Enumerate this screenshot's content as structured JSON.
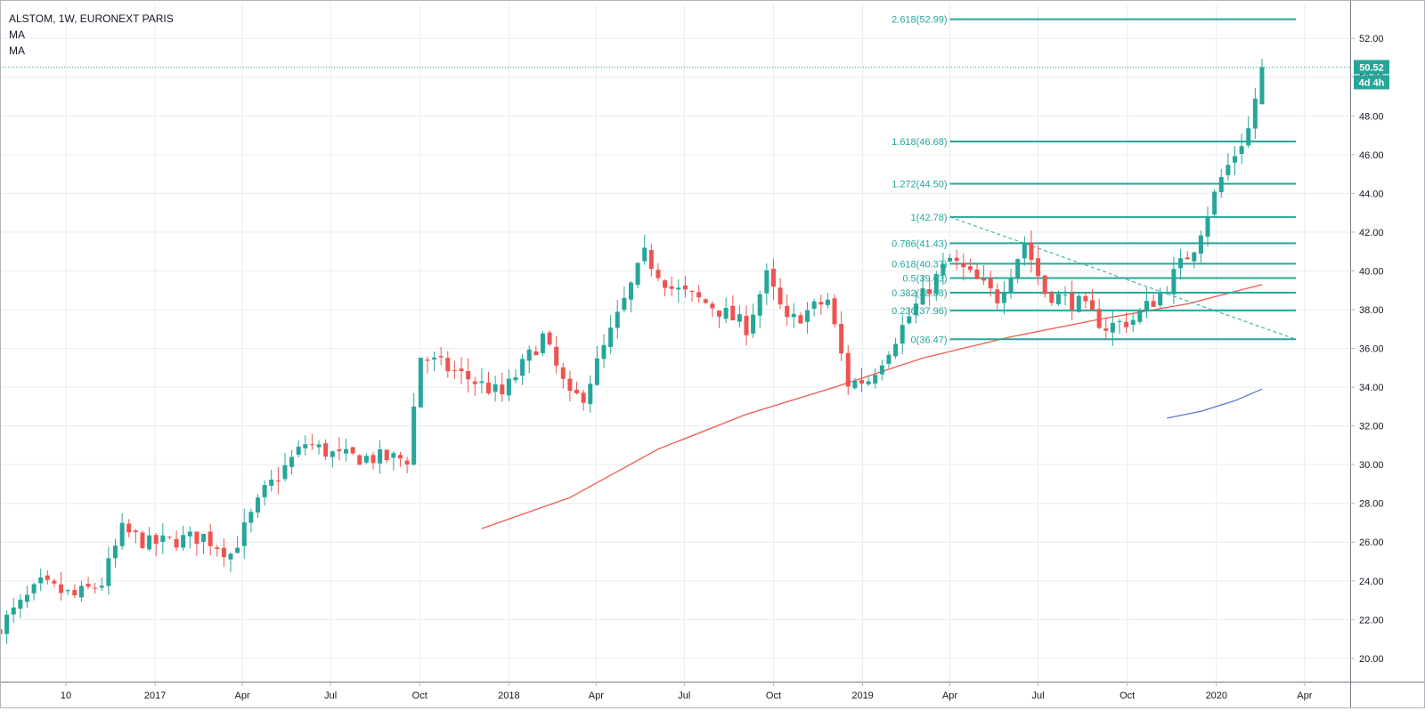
{
  "legend": {
    "symbol_line": "ALSTOM, 1W, EURONEXT PARIS",
    "ma1": "MA",
    "ma2": "MA"
  },
  "colors": {
    "up": "#26a69a",
    "down": "#ef5350",
    "grid": "#e9ecf2",
    "fib": "#26a69a",
    "ma_red": "#f05a50",
    "ma_blue": "#5b79c8",
    "price_badge": "#26a69a",
    "timer_badge": "#26a69a"
  },
  "price_badge": "50.52",
  "timer_badge": "4d 4h",
  "chart_data": {
    "type": "candlestick",
    "title": "ALSTOM, 1W, EURONEXT PARIS",
    "x_range": [
      "2016-07-25",
      "2020-05-18"
    ],
    "y_range": [
      18.8,
      53.8
    ],
    "y_ticks": [
      20,
      22,
      24,
      26,
      28,
      30,
      32,
      34,
      36,
      38,
      40,
      42,
      44,
      46,
      48,
      50,
      52
    ],
    "y_tick_labels": [
      "20.00",
      "22.00",
      "24.00",
      "26.00",
      "28.00",
      "30.00",
      "32.00",
      "34.00",
      "36.00",
      "38.00",
      "40.00",
      "42.00",
      "44.00",
      "46.00",
      "48.00",
      "50.00",
      "52.00"
    ],
    "x_ticks": [
      {
        "date": "2016-10-01",
        "label": "10"
      },
      {
        "date": "2017-01-01",
        "label": "2017"
      },
      {
        "date": "2017-04-01",
        "label": "Apr"
      },
      {
        "date": "2017-07-01",
        "label": "Jul"
      },
      {
        "date": "2017-10-01",
        "label": "Oct"
      },
      {
        "date": "2018-01-01",
        "label": "2018"
      },
      {
        "date": "2018-04-01",
        "label": "Apr"
      },
      {
        "date": "2018-07-01",
        "label": "Jul"
      },
      {
        "date": "2018-10-01",
        "label": "Oct"
      },
      {
        "date": "2019-01-01",
        "label": "2019"
      },
      {
        "date": "2019-04-01",
        "label": "Apr"
      },
      {
        "date": "2019-07-01",
        "label": "Jul"
      },
      {
        "date": "2019-10-01",
        "label": "Oct"
      },
      {
        "date": "2020-01-01",
        "label": "2020"
      },
      {
        "date": "2020-04-01",
        "label": "Apr"
      }
    ],
    "last_price": 50.52,
    "candle_path": [
      [
        "2016-07-25",
        21.7
      ],
      [
        "2016-09-05",
        23.8
      ],
      [
        "2016-10-10",
        23.2
      ],
      [
        "2016-11-07",
        23.9
      ],
      [
        "2016-11-28",
        26.6
      ],
      [
        "2016-12-26",
        25.9
      ],
      [
        "2017-02-20",
        26.3
      ],
      [
        "2017-03-20",
        25.4
      ],
      [
        "2017-04-24",
        28.6
      ],
      [
        "2017-06-05",
        31.1
      ],
      [
        "2017-07-10",
        30.4
      ],
      [
        "2017-09-18",
        30.3
      ],
      [
        "2017-10-02",
        35.6
      ],
      [
        "2017-11-06",
        34.8
      ],
      [
        "2017-12-25",
        33.6
      ],
      [
        "2018-02-05",
        36.6
      ],
      [
        "2018-03-05",
        33.4
      ],
      [
        "2018-03-19",
        33.6
      ],
      [
        "2018-05-21",
        40.8
      ],
      [
        "2018-06-18",
        39.1
      ],
      [
        "2018-07-30",
        38.2
      ],
      [
        "2018-09-03",
        37.1
      ],
      [
        "2018-09-24",
        39.7
      ],
      [
        "2018-10-15",
        37.3
      ],
      [
        "2018-11-26",
        38.5
      ],
      [
        "2018-12-17",
        34.2
      ],
      [
        "2019-01-07",
        34.4
      ],
      [
        "2019-02-25",
        38.2
      ],
      [
        "2019-04-01",
        40.6
      ],
      [
        "2019-05-20",
        38.6
      ],
      [
        "2019-06-17",
        41.5
      ],
      [
        "2019-07-08",
        38.9
      ],
      [
        "2019-08-12",
        38.3
      ],
      [
        "2019-09-09",
        37.1
      ],
      [
        "2019-10-07",
        37.5
      ],
      [
        "2019-11-04",
        38.8
      ],
      [
        "2019-12-09",
        41.3
      ],
      [
        "2020-01-06",
        44.8
      ],
      [
        "2020-02-03",
        47.3
      ],
      [
        "2020-02-17",
        50.52
      ]
    ],
    "fib_levels": [
      {
        "label": "2.618(52.99)",
        "value": 52.99
      },
      {
        "label": "1.618(46.68)",
        "value": 46.68
      },
      {
        "label": "1.272(44.50)",
        "value": 44.5
      },
      {
        "label": "1(42.78)",
        "value": 42.78
      },
      {
        "label": "0.786(41.43)",
        "value": 41.43
      },
      {
        "label": "0.618(40.37)",
        "value": 40.37
      },
      {
        "label": "0.5(39.63)",
        "value": 39.63
      },
      {
        "label": "0.382(38.88)",
        "value": 38.88
      },
      {
        "label": "0.236(37.96)",
        "value": 37.96
      },
      {
        "label": "0(36.47)",
        "value": 36.47
      }
    ],
    "fib_range": [
      "2019-04-01",
      "2020-03-23"
    ],
    "fib_diagonal": [
      [
        "2019-04-01",
        42.78
      ],
      [
        "2020-03-23",
        36.47
      ]
    ],
    "ma_red_points": [
      [
        "2017-12-04",
        26.7
      ],
      [
        "2018-03-05",
        28.3
      ],
      [
        "2018-06-04",
        30.8
      ],
      [
        "2018-09-03",
        32.6
      ],
      [
        "2018-12-03",
        34.0
      ],
      [
        "2019-03-04",
        35.5
      ],
      [
        "2019-06-03",
        36.6
      ],
      [
        "2019-09-02",
        37.5
      ],
      [
        "2019-12-02",
        38.3
      ],
      [
        "2020-02-17",
        39.3
      ]
    ],
    "ma_blue_points": [
      [
        "2019-11-11",
        32.4
      ],
      [
        "2019-12-16",
        32.75
      ],
      [
        "2020-01-20",
        33.3
      ],
      [
        "2020-02-17",
        33.9
      ]
    ]
  }
}
